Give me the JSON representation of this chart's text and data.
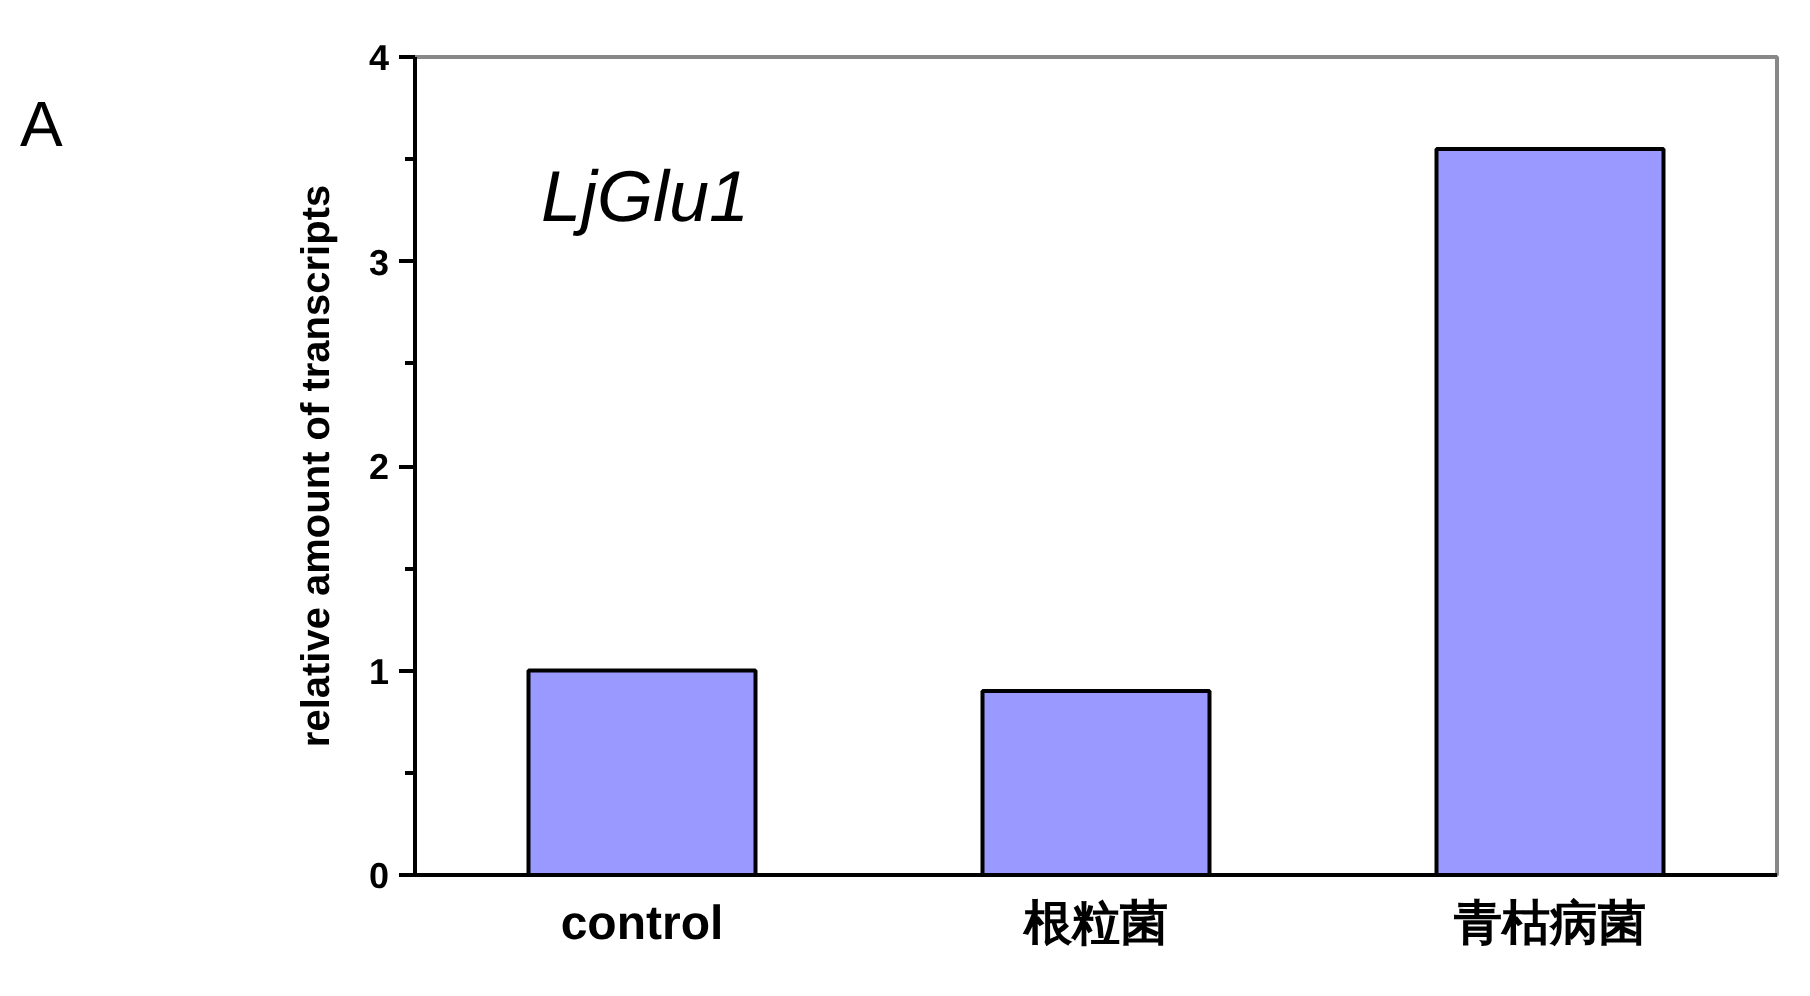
{
  "chart_data": {
    "type": "bar",
    "categories": [
      "control",
      "根粒菌",
      "青枯病菌"
    ],
    "values": [
      1.0,
      0.9,
      3.55
    ],
    "color": "#9999ff",
    "ylabel": "relative amount of transcripts",
    "ylim": [
      0,
      4
    ],
    "yticks": [
      0,
      1,
      2,
      3,
      4
    ],
    "grid": false,
    "annotations": [
      "A",
      "LjGlu1"
    ]
  }
}
